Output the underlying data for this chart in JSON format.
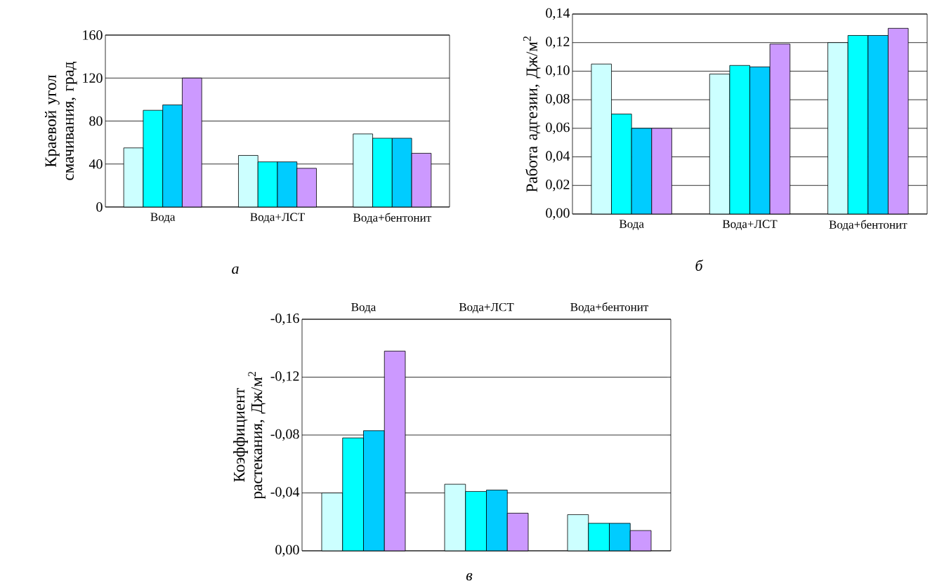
{
  "chart_data": [
    {
      "type": "bar",
      "ylabel": "Краевой угол смачивания, град",
      "categories": [
        "Вода",
        "Вода+ЛСТ",
        "Вода+бентонит"
      ],
      "series": [
        {
          "color": "#ccffff",
          "values": [
            55,
            48,
            68
          ]
        },
        {
          "color": "#00ffff",
          "values": [
            90,
            42,
            64
          ]
        },
        {
          "color": "#00ccff",
          "values": [
            95,
            42,
            64
          ]
        },
        {
          "color": "#cc99ff",
          "values": [
            120,
            36,
            50
          ]
        }
      ],
      "ylim": [
        0,
        160
      ],
      "yticks": [
        0,
        40,
        80,
        120,
        160
      ],
      "grid": "y",
      "annotations": [
        "а"
      ]
    },
    {
      "type": "bar",
      "ylabel": "Работа адгезии, Дж/м$^{2}$",
      "categories": [
        "Вода",
        "Вода+ЛСТ",
        "Вода+бентонит"
      ],
      "series": [
        {
          "color": "#ccffff",
          "values": [
            0.105,
            0.098,
            0.12
          ]
        },
        {
          "color": "#00ffff",
          "values": [
            0.07,
            0.104,
            0.125
          ]
        },
        {
          "color": "#00ccff",
          "values": [
            0.06,
            0.103,
            0.125
          ]
        },
        {
          "color": "#cc99ff",
          "values": [
            0.06,
            0.119,
            0.13
          ]
        }
      ],
      "ylim": [
        0,
        0.14
      ],
      "yticks": [
        {
          "value": 0,
          "label": "0,00"
        },
        {
          "value": 0.02,
          "label": "0,02"
        },
        {
          "value": 0.04,
          "label": "0,04"
        },
        {
          "value": 0.06,
          "label": "0,06"
        },
        {
          "value": 0.08,
          "label": "0,08"
        },
        {
          "value": 0.1,
          "label": "0,10"
        },
        {
          "value": 0.12,
          "label": "0,12"
        },
        {
          "value": 0.14,
          "label": "0,14"
        }
      ],
      "grid": "y",
      "annotations": [
        "б"
      ]
    },
    {
      "type": "bar",
      "ylabel": "Коэффициент растекания, Дж/м$^{2}$",
      "categories": [
        "Вода",
        "Вода+ЛСТ",
        "Вода+бентонит"
      ],
      "series": [
        {
          "color": "#ccffff",
          "values": [
            -0.04,
            -0.046,
            -0.025
          ]
        },
        {
          "color": "#00ffff",
          "values": [
            -0.078,
            -0.041,
            -0.019
          ]
        },
        {
          "color": "#00ccff",
          "values": [
            -0.083,
            -0.042,
            -0.019
          ]
        },
        {
          "color": "#cc99ff",
          "values": [
            -0.138,
            -0.026,
            -0.014
          ]
        }
      ],
      "ylim": [
        0,
        -0.16
      ],
      "yticks": [
        {
          "value": 0,
          "label": "0,00"
        },
        {
          "value": -0.04,
          "label": "-0,04"
        },
        {
          "value": -0.08,
          "label": "-0,08"
        },
        {
          "value": -0.12,
          "label": "-0,12"
        },
        {
          "value": -0.16,
          "label": "-0,16"
        }
      ],
      "grid": "y",
      "annotations": [
        "в"
      ]
    }
  ]
}
